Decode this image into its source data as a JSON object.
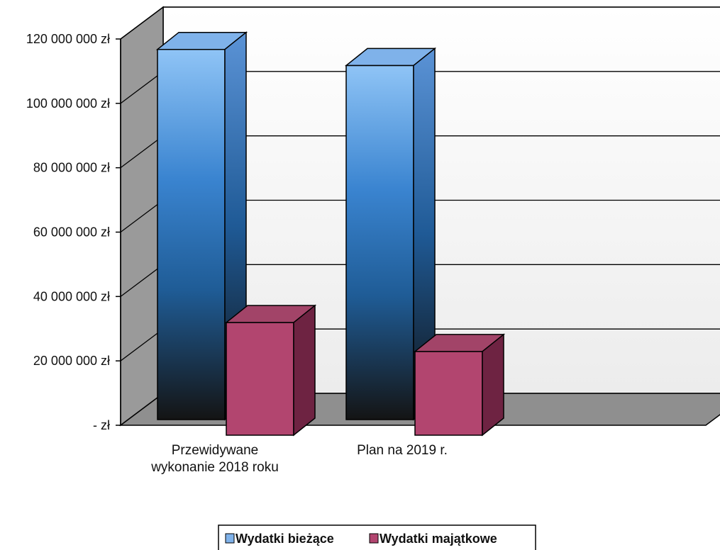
{
  "chart_data": {
    "type": "bar",
    "categories": [
      "Przewidywane\nwykonanie 2018 roku",
      "Plan na 2019 r."
    ],
    "series": [
      {
        "name": "Wydatki bieżące",
        "values": [
          115000000,
          110000000
        ]
      },
      {
        "name": "Wydatki majątkowe",
        "values": [
          35000000,
          26000000
        ]
      }
    ],
    "yticks": [
      "- zł",
      "20 000 000 zł",
      "40 000 000 zł",
      "60 000 000 zł",
      "80 000 000 zł",
      "100 000 000 zł",
      "120 000 000 zł"
    ],
    "ylim": [
      0,
      120000000
    ],
    "grid": true,
    "legend": "bottom",
    "colors": {
      "series1_top": "#7fb2ea",
      "series1_side": "#3f6fb0",
      "series2_front": "#b2456f",
      "series2_top": "#a24468",
      "series2_side": "#6e2342",
      "back_wall": "#f4f4f4",
      "left_wall": "#9a9a9a",
      "floor": "#8f8f8f"
    }
  }
}
